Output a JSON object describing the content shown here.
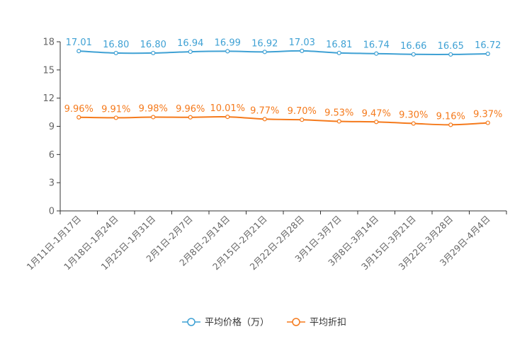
{
  "chart_data": {
    "type": "line",
    "categories": [
      "1月11日-1月17日",
      "1月18日-1月24日",
      "1月25日-1月31日",
      "2月1日-2月7日",
      "2月8日-2月14日",
      "2月15日-2月21日",
      "2月22日-2月28日",
      "3月1日-3月7日",
      "3月8日-3月14日",
      "3月15日-3月21日",
      "3月22日-3月28日",
      "3月29日-4月4日"
    ],
    "ylim": [
      0,
      18
    ],
    "yticks": [
      0,
      3,
      6,
      9,
      12,
      15,
      18
    ],
    "grid": false,
    "legend_position": "bottom",
    "series": [
      {
        "name": "平均价格（万）",
        "color": "#3fa1d4",
        "values": [
          17.01,
          16.8,
          16.8,
          16.94,
          16.99,
          16.92,
          17.03,
          16.81,
          16.74,
          16.66,
          16.65,
          16.72
        ],
        "labels": [
          "17.01",
          "16.80",
          "16.80",
          "16.94",
          "16.99",
          "16.92",
          "17.03",
          "16.81",
          "16.74",
          "16.66",
          "16.65",
          "16.72"
        ]
      },
      {
        "name": "平均折扣",
        "color": "#f57a1c",
        "values": [
          9.96,
          9.91,
          9.98,
          9.96,
          10.01,
          9.77,
          9.7,
          9.53,
          9.47,
          9.3,
          9.16,
          9.37
        ],
        "labels": [
          "9.96%",
          "9.91%",
          "9.98%",
          "9.96%",
          "10.01%",
          "9.77%",
          "9.70%",
          "9.53%",
          "9.47%",
          "9.30%",
          "9.16%",
          "9.37%"
        ]
      }
    ]
  }
}
